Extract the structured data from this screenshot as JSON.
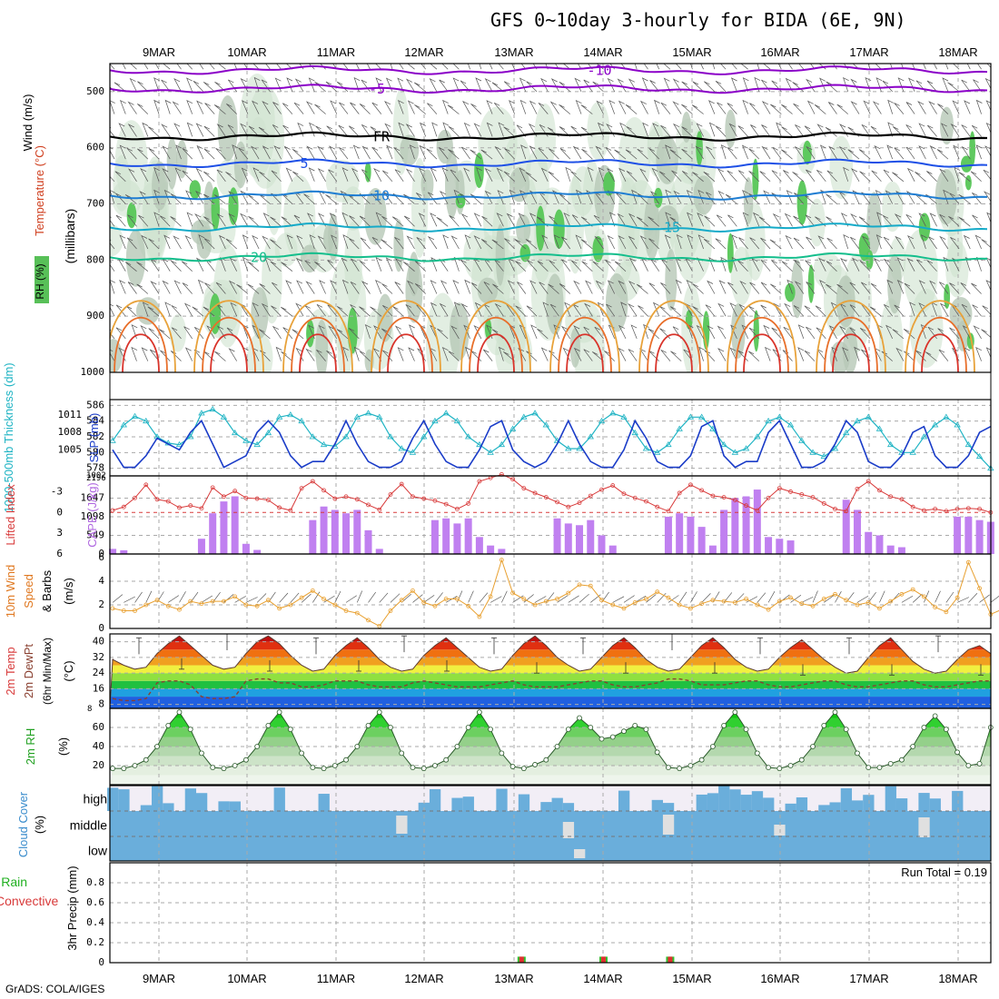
{
  "title": "GFS 0~10day 3-hourly for BIDA (6E, 9N)",
  "footer": "GrADS: COLA/IGES",
  "dates": [
    "9MAR",
    "10MAR",
    "11MAR",
    "12MAR",
    "13MAR",
    "14MAR",
    "15MAR",
    "16MAR",
    "17MAR",
    "18MAR"
  ],
  "colors": {
    "grid": "#999999",
    "frame": "#000000"
  },
  "chart_data": [
    {
      "type": "heatmap",
      "panel": "upper-air",
      "ylabel_parts": [
        "Wind (m/s)",
        "Temperature (°C)",
        "RH (%)",
        "(millibars)"
      ],
      "y_ticks": [
        500,
        600,
        700,
        800,
        900,
        1000
      ],
      "ylim": [
        450,
        1000
      ],
      "rh_legend": "RH (%)",
      "temperature_contours": [
        {
          "label": "-10",
          "level_mb": 462,
          "color": "#8B00C8"
        },
        {
          "label": "-5",
          "level_mb": 495,
          "color": "#8B00C8"
        },
        {
          "label": "FR",
          "level_mb": 580,
          "color": "#000000"
        },
        {
          "label": "5",
          "level_mb": 628,
          "color": "#1E50E6"
        },
        {
          "label": "10",
          "level_mb": 685,
          "color": "#1E7DD2"
        },
        {
          "label": "15",
          "level_mb": 742,
          "color": "#14AAC8"
        },
        {
          "label": "20",
          "level_mb": 795,
          "color": "#14BE8C"
        }
      ],
      "rh_labels": [
        "10",
        "30",
        "30",
        "30",
        "30"
      ],
      "labels_shown": [
        "-10",
        "-5",
        "FR",
        "5",
        "10",
        "15",
        "20",
        "10",
        "10",
        "5",
        "3",
        "20"
      ]
    },
    {
      "type": "line",
      "panel": "thickness-slp",
      "ylabel_left": "1000-500mb Thickness (dm)",
      "ylabel_right": "SLP (mb)",
      "left_ticks": [
        578,
        580,
        582,
        584,
        586
      ],
      "right_ticks": [
        1005,
        1008,
        1011
      ],
      "right_overlap_tick": "1002",
      "thickness_dm": [
        581.5,
        583.5,
        584.6,
        584.0,
        582.0,
        581.2,
        581.0,
        582.0,
        585.0,
        585.5,
        584.5,
        582.5,
        581.5,
        581.0,
        582.5,
        584.5,
        584.8,
        584.0,
        582.0,
        581.0,
        580.8,
        582.0,
        584.5,
        585.0,
        584.5,
        582.0,
        580.5,
        580.0,
        582.0,
        584.0,
        585.0,
        584.0,
        582.0,
        581.0,
        580.0,
        581.0,
        583.0,
        584.5,
        585.0,
        583.5,
        581.5,
        580.5,
        580.5,
        582.0,
        584.0,
        585.0,
        584.5,
        582.5,
        580.5,
        580.0,
        581.0,
        583.0,
        584.5,
        584.5,
        583.0,
        581.0,
        580.0,
        580.5,
        582.0,
        584.0,
        584.5,
        583.5,
        581.5,
        580.0,
        579.5,
        580.5,
        582.5,
        584.0,
        584.5,
        583.0,
        581.0,
        580.0,
        580.0,
        582.0,
        583.5,
        584.5,
        583.5,
        581.0,
        579.5,
        578.0
      ],
      "slp_mb": [
        1005,
        1002,
        1002,
        1004,
        1007,
        1006,
        1005,
        1008,
        1010,
        1006,
        1002,
        1003,
        1004,
        1008,
        1010,
        1008,
        1004,
        1002,
        1003,
        1003,
        1006,
        1010,
        1006,
        1003,
        1002,
        1002,
        1003,
        1007,
        1010,
        1006,
        1003,
        1002,
        1002,
        1005,
        1009,
        1010,
        1005,
        1003,
        1002,
        1003,
        1006,
        1010,
        1006,
        1003,
        1002,
        1002,
        1005,
        1010,
        1007,
        1003,
        1002,
        1002,
        1004,
        1009,
        1010,
        1004,
        1002,
        1003,
        1003,
        1008,
        1010,
        1006,
        1002,
        1002,
        1003,
        1006,
        1010,
        1008,
        1003,
        1002,
        1002,
        1004,
        1008,
        1009,
        1004,
        1002,
        1002,
        1004,
        1008,
        1009
      ]
    },
    {
      "type": "bar",
      "panel": "cape-lifted-index",
      "ylabel_left": "Lifted Index",
      "ylabel_right": "CAPE (J/kg)",
      "left_ticks": [
        "-3",
        "0",
        "3",
        "6"
      ],
      "right_ticks": [
        0,
        549,
        1098,
        1647
      ],
      "right_overlap_tick": "2196",
      "cape_jkg": [
        150,
        110,
        0,
        0,
        0,
        0,
        0,
        0,
        450,
        1200,
        1550,
        1700,
        300,
        120,
        0,
        0,
        0,
        0,
        1000,
        1400,
        1300,
        1200,
        1300,
        700,
        150,
        0,
        0,
        0,
        0,
        1000,
        1050,
        900,
        1050,
        500,
        250,
        150,
        0,
        0,
        0,
        0,
        1050,
        900,
        850,
        1000,
        550,
        250,
        0,
        0,
        0,
        0,
        1100,
        1200,
        1100,
        800,
        250,
        1300,
        1650,
        1700,
        1900,
        500,
        450,
        400,
        0,
        0,
        0,
        0,
        1600,
        1300,
        650,
        550,
        250,
        200,
        0,
        0,
        0,
        0,
        1100,
        1100,
        1000,
        950
      ],
      "lifted_index": [
        -0.3,
        -0.8,
        -2.1,
        -4.0,
        -1.9,
        -1.6,
        -0.7,
        -1.0,
        -0.6,
        -3.6,
        -2.3,
        -3.1,
        -2.1,
        -2.0,
        -1.8,
        -0.7,
        -0.3,
        -3.5,
        -4.5,
        -3.2,
        -2.0,
        -2.3,
        -1.9,
        -1.1,
        -0.4,
        -2.6,
        -4.1,
        -2.3,
        -2.0,
        -1.7,
        -1.2,
        -0.5,
        -1.3,
        -4.5,
        -5.0,
        -5.5,
        -4.8,
        -3.5,
        -2.8,
        -2.2,
        -1.5,
        -0.8,
        -1.4,
        -2.4,
        -3.3,
        -3.9,
        -2.7,
        -2.1,
        -1.6,
        -0.8,
        -0.2,
        -2.8,
        -4.0,
        -3.2,
        -2.4,
        -2.2,
        -1.8,
        -1.0,
        -0.3,
        -2.1,
        -3.5,
        -3.0,
        -2.6,
        -2.2,
        -1.3,
        -0.5,
        -0.2,
        -3.4,
        -4.5,
        -3.2,
        -2.3,
        -1.9,
        -0.8,
        -0.3,
        -0.5,
        -0.2,
        -0.5,
        -0.6,
        -0.5,
        0.0
      ],
      "li_line": 0
    },
    {
      "type": "line",
      "panel": "wind10m",
      "ylabel_parts": [
        "10m Wind",
        "Speed",
        "& Barbs",
        "(m/s)"
      ],
      "ticks": [
        0,
        2,
        4,
        6
      ],
      "ylim": [
        0,
        6
      ],
      "speed_ms": [
        1.7,
        1.5,
        1.5,
        2.0,
        2.4,
        1.9,
        1.6,
        2.3,
        2.1,
        2.3,
        2.3,
        2.7,
        2.0,
        1.9,
        2.4,
        1.7,
        2.0,
        2.6,
        3.2,
        2.5,
        2.0,
        1.5,
        1.3,
        0.7,
        0.2,
        1.5,
        2.4,
        3.2,
        2.2,
        1.9,
        2.5,
        2.5,
        1.9,
        1.0,
        2.7,
        5.8,
        3.0,
        2.5,
        2.0,
        2.3,
        2.5,
        3.0,
        3.7,
        3.6,
        2.4,
        2.0,
        1.7,
        2.2,
        2.5,
        3.1,
        2.6,
        2.0,
        1.7,
        2.1,
        2.4,
        2.3,
        2.2,
        2.5,
        2.0,
        1.6,
        2.3,
        2.6,
        2.1,
        1.9,
        2.5,
        2.9,
        2.4,
        2.0,
        2.2,
        1.7,
        2.3,
        2.9,
        3.3,
        2.7,
        1.8,
        1.4,
        2.6,
        5.6,
        3.4,
        1.2,
        1.6,
        2.0
      ]
    },
    {
      "type": "area",
      "panel": "temp-dewpt",
      "ylabel_parts": [
        "2m Temp",
        "2m DewPt",
        "(6hr Min/Max)",
        "(°C)"
      ],
      "ticks": [
        8,
        16,
        24,
        32,
        40
      ],
      "overlap_tick": "8",
      "ylim": [
        6,
        44
      ],
      "temp_c": [
        31,
        28,
        26,
        27,
        34,
        39,
        43,
        38,
        33,
        28,
        26,
        27,
        34,
        40,
        43,
        39,
        33,
        28,
        25,
        26,
        33,
        38,
        42,
        37,
        31,
        27,
        25,
        26,
        33,
        38,
        42,
        37,
        32,
        27,
        25,
        26,
        33,
        39,
        43,
        38,
        32,
        28,
        25,
        26,
        32,
        38,
        42,
        37,
        31,
        27,
        25,
        26,
        32,
        38,
        42,
        37,
        31,
        27,
        25,
        26,
        32,
        37,
        41,
        36,
        31,
        27,
        24,
        25,
        32,
        38,
        42,
        36,
        30,
        26,
        24,
        25,
        31,
        36,
        38,
        34
      ],
      "dewpt_c": [
        11,
        10,
        10,
        11,
        19,
        20,
        20,
        18,
        12,
        11,
        11,
        12,
        20,
        21,
        21,
        19,
        19,
        17,
        17,
        18,
        20,
        20,
        20,
        18,
        17,
        17,
        17,
        19,
        20,
        19,
        18,
        17,
        17,
        17,
        18,
        19,
        20,
        18,
        17,
        17,
        17,
        18,
        19,
        20,
        20,
        18,
        17,
        17,
        18,
        19,
        21,
        21,
        20,
        18,
        18,
        18,
        19,
        20,
        20,
        18,
        17,
        17,
        18,
        19,
        20,
        20,
        18,
        17,
        17,
        18,
        19,
        20,
        20,
        18,
        17,
        17,
        18,
        19,
        20,
        20
      ],
      "tmax_c": [
        42,
        44,
        42,
        43,
        42,
        42,
        44,
        42,
        42,
        43
      ],
      "tmin_c": [
        26,
        25,
        25,
        25,
        24,
        24,
        24,
        23,
        23,
        23
      ]
    },
    {
      "type": "area",
      "panel": "rh2m",
      "ylabel_parts": [
        "2m RH",
        "(%)"
      ],
      "ticks": [
        20,
        40,
        60
      ],
      "ylim": [
        0,
        80
      ],
      "rh_pct": [
        17,
        17,
        20,
        26,
        40,
        62,
        76,
        58,
        33,
        18,
        17,
        20,
        26,
        40,
        62,
        76,
        58,
        33,
        18,
        17,
        20,
        26,
        40,
        62,
        76,
        60,
        33,
        18,
        17,
        20,
        26,
        40,
        60,
        76,
        58,
        33,
        19,
        17,
        21,
        26,
        40,
        58,
        70,
        60,
        48,
        50,
        56,
        62,
        58,
        34,
        18,
        17,
        20,
        26,
        40,
        62,
        76,
        58,
        33,
        18,
        17,
        20,
        26,
        40,
        62,
        76,
        58,
        33,
        18,
        18,
        22,
        26,
        40,
        60,
        72,
        58,
        34,
        20,
        22,
        60
      ]
    },
    {
      "type": "heatmap",
      "panel": "cloud-cover",
      "ylabel_parts": [
        "Cloud Cover",
        "(%)"
      ],
      "row_labels": [
        "high",
        "middle",
        "low"
      ]
    },
    {
      "type": "bar",
      "panel": "precip",
      "ylabel_parts": [
        "Total / Rain",
        "Convective",
        "3hr Precip (mm)"
      ],
      "ticks": [
        "0",
        "0.2",
        "0.4",
        "0.6",
        "0.8"
      ],
      "ylim": [
        0,
        1.0
      ],
      "run_total_label": "Run Total = 0.19",
      "events": [
        {
          "date_index": 4,
          "time_frac": 0.08,
          "total_mm": 0.06,
          "convective_mm": 0.06
        },
        {
          "date_index": 5,
          "time_frac": 0.0,
          "total_mm": 0.06,
          "convective_mm": 0.06
        },
        {
          "date_index": 5,
          "time_frac": 0.75,
          "total_mm": 0.06,
          "convective_mm": 0.06
        }
      ]
    }
  ]
}
